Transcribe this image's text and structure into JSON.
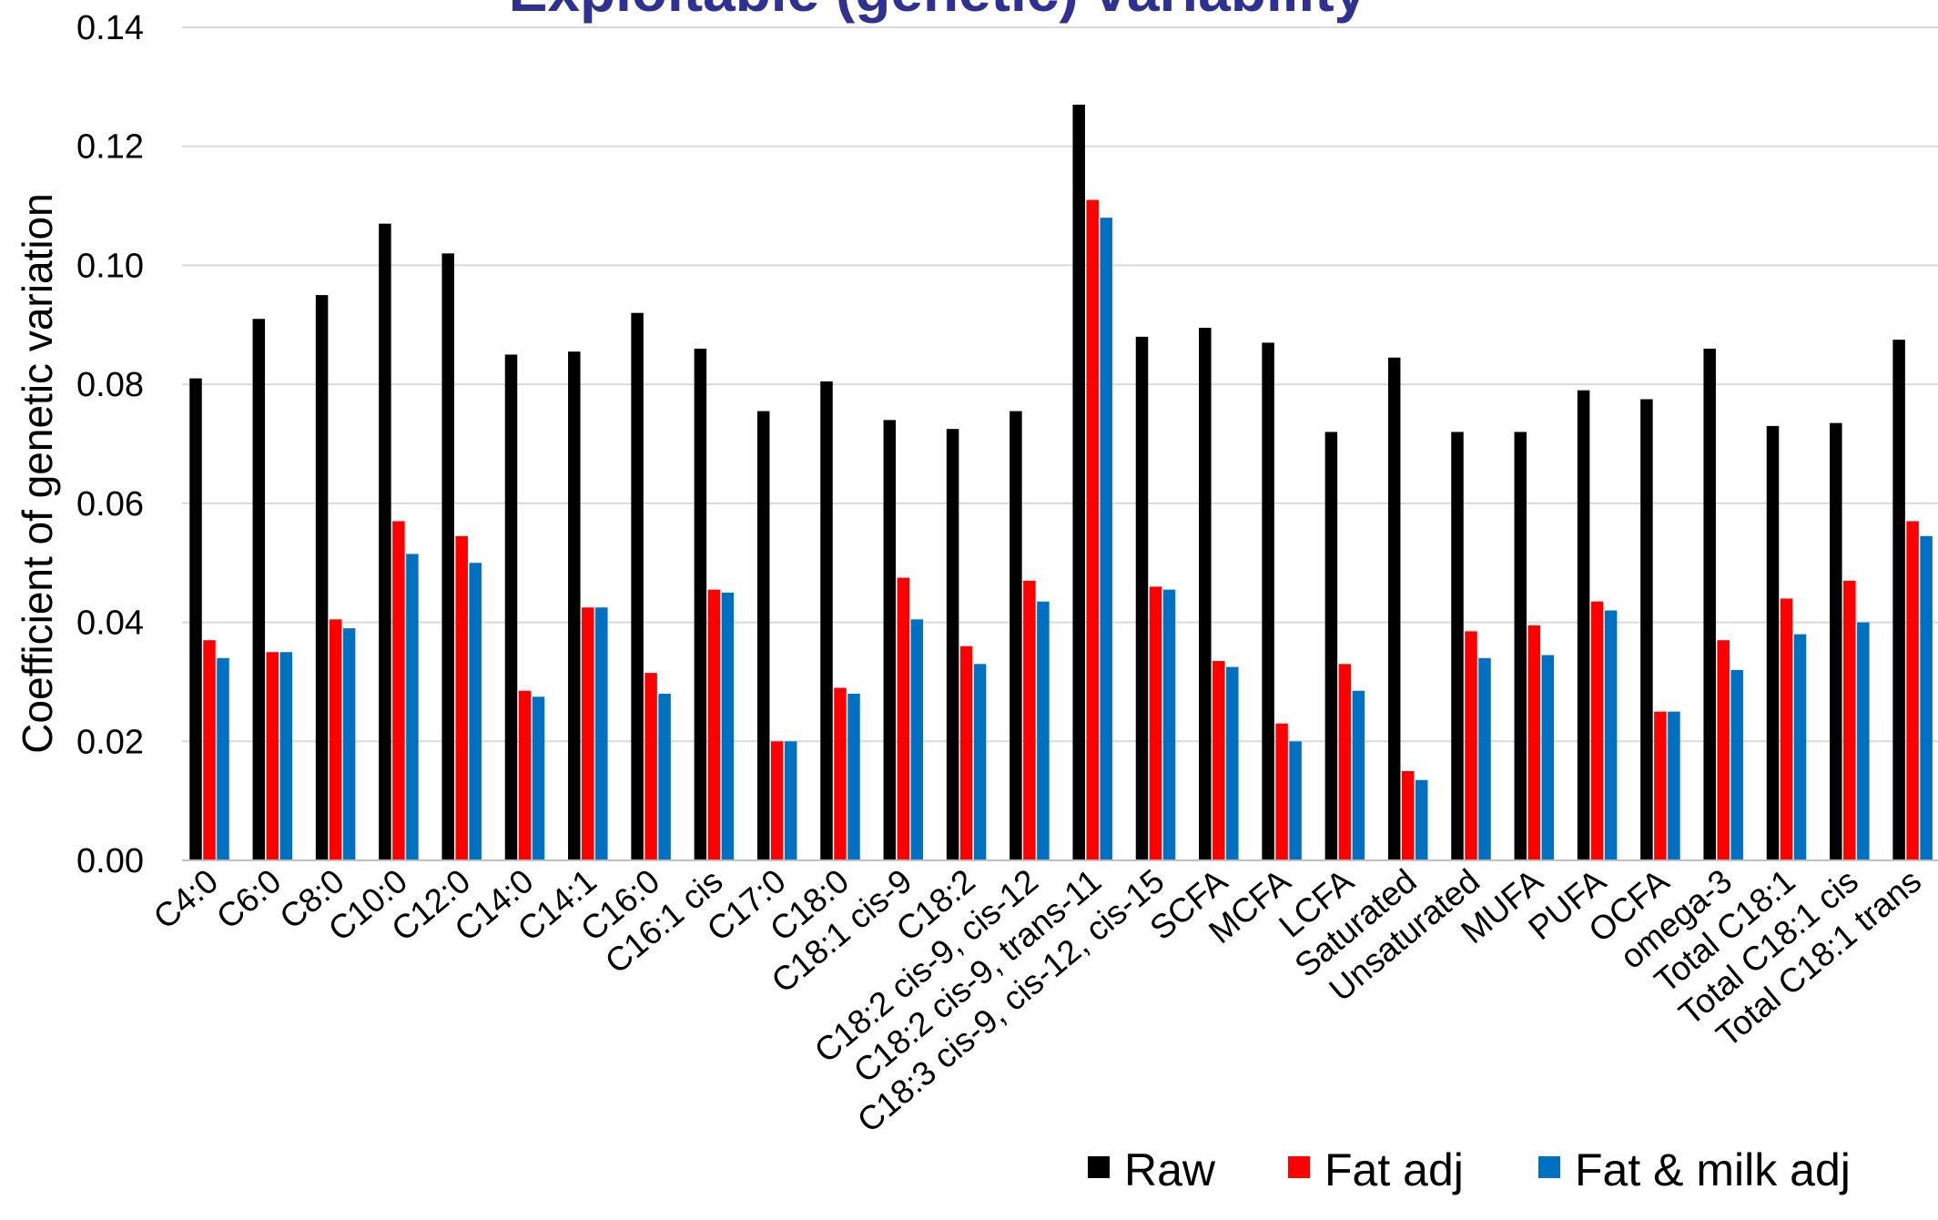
{
  "chart_data": {
    "type": "bar",
    "title": "Exploitable (genetic) variability",
    "xlabel": "",
    "ylabel": "Coefficient of genetic variation",
    "ylim": [
      0,
      0.14
    ],
    "yticks": [
      "0.00",
      "0.02",
      "0.04",
      "0.06",
      "0.08",
      "0.10",
      "0.12",
      "0.14"
    ],
    "grid": true,
    "legend_position": "bottom-right",
    "categories": [
      "C4:0",
      "C6:0",
      "C8:0",
      "C10:0",
      "C12:0",
      "C14:0",
      "C14:1",
      "C16:0",
      "C16:1 cis",
      "C17:0",
      "C18:0",
      "C18:1 cis-9",
      "C18:2",
      "C18:2 cis-9, cis-12",
      "C18:2 cis-9, trans-11",
      "C18:3 cis-9, cis-12, cis-15",
      "SCFA",
      "MCFA",
      "LCFA",
      "Saturated",
      "Unsaturated",
      "MUFA",
      "PUFA",
      "OCFA",
      "omega-3",
      "Total C18:1",
      "Total C18:1 cis",
      "Total C18:1 trans"
    ],
    "series": [
      {
        "name": "Raw",
        "color": "#000000",
        "values": [
          0.081,
          0.091,
          0.095,
          0.107,
          0.102,
          0.085,
          0.0855,
          0.092,
          0.086,
          0.0755,
          0.0805,
          0.074,
          0.0725,
          0.0755,
          0.127,
          0.088,
          0.0895,
          0.087,
          0.072,
          0.0845,
          0.072,
          0.072,
          0.079,
          0.0775,
          0.086,
          0.073,
          0.0735,
          0.0875
        ]
      },
      {
        "name": "Fat adj",
        "color": "#FF0000",
        "values": [
          0.037,
          0.035,
          0.0405,
          0.057,
          0.0545,
          0.0285,
          0.0425,
          0.0315,
          0.0455,
          0.02,
          0.029,
          0.0475,
          0.036,
          0.047,
          0.111,
          0.046,
          0.0335,
          0.023,
          0.033,
          0.015,
          0.0385,
          0.0395,
          0.0435,
          0.025,
          0.037,
          0.044,
          0.047,
          0.057
        ]
      },
      {
        "name": "Fat & milk adj",
        "color": "#0070C0",
        "values": [
          0.034,
          0.035,
          0.039,
          0.0515,
          0.05,
          0.0275,
          0.0425,
          0.028,
          0.045,
          0.02,
          0.028,
          0.0405,
          0.033,
          0.0435,
          0.108,
          0.0455,
          0.0325,
          0.02,
          0.0285,
          0.0135,
          0.034,
          0.0345,
          0.042,
          0.025,
          0.032,
          0.038,
          0.04,
          0.0545
        ]
      }
    ]
  }
}
